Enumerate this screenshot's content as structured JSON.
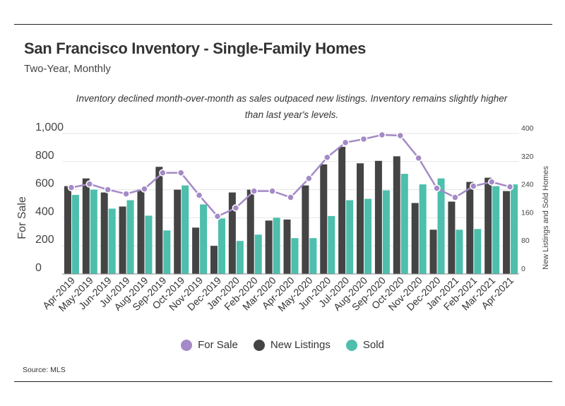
{
  "title": "San Francisco Inventory - Single-Family Homes",
  "subtitle": "Two-Year, Monthly",
  "annotation": "Inventory declined month-over-month as sales outpaced new listings. Inventory remains slightly higher than last year's levels.",
  "source": "Source:  MLS",
  "colors": {
    "for_sale": "#a48ac6",
    "new_listings": "#444444",
    "sold": "#4dbfac"
  },
  "chart_data": {
    "type": "bar",
    "categories": [
      "Apr-2019",
      "May-2019",
      "Jun-2019",
      "Jul-2019",
      "Aug-2019",
      "Sep-2019",
      "Oct-2019",
      "Nov-2019",
      "Dec-2019",
      "Jan-2020",
      "Feb-2020",
      "Mar-2020",
      "Apr-2020",
      "May-2020",
      "Jun-2020",
      "Jul-2020",
      "Aug-2020",
      "Sep-2020",
      "Oct-2020",
      "Nov-2020",
      "Dec-2020",
      "Jan-2021",
      "Feb-2021",
      "Mar-2021",
      "Apr-2021"
    ],
    "ylabel": "For Sale",
    "ylabel_right": "New Listings and Sold Homes",
    "ylim": [
      0,
      1000
    ],
    "yticks": [
      "0",
      "200",
      "400",
      "600",
      "800",
      "1,000"
    ],
    "ylim_right": [
      0,
      400
    ],
    "yticks_right": [
      "0",
      "80",
      "160",
      "240",
      "320",
      "400"
    ],
    "series": [
      {
        "name": "For Sale",
        "type": "line",
        "axis": "left",
        "values": [
          615,
          640,
          600,
          570,
          605,
          720,
          720,
          560,
          410,
          470,
          590,
          590,
          545,
          680,
          830,
          935,
          960,
          990,
          985,
          825,
          610,
          545,
          625,
          655,
          620
        ]
      },
      {
        "name": "New Listings",
        "type": "bar",
        "axis": "right",
        "values": [
          250,
          272,
          232,
          192,
          240,
          305,
          240,
          132,
          80,
          232,
          240,
          152,
          155,
          252,
          312,
          362,
          315,
          322,
          335,
          202,
          126,
          206,
          262,
          274,
          236
        ]
      },
      {
        "name": "Sold",
        "type": "bar",
        "axis": "right",
        "values": [
          225,
          240,
          186,
          210,
          166,
          124,
          252,
          198,
          158,
          94,
          112,
          160,
          102,
          102,
          165,
          210,
          214,
          238,
          285,
          255,
          272,
          126,
          128,
          250,
          255
        ]
      }
    ],
    "legend_placement": "bottom-center",
    "grid": true
  }
}
